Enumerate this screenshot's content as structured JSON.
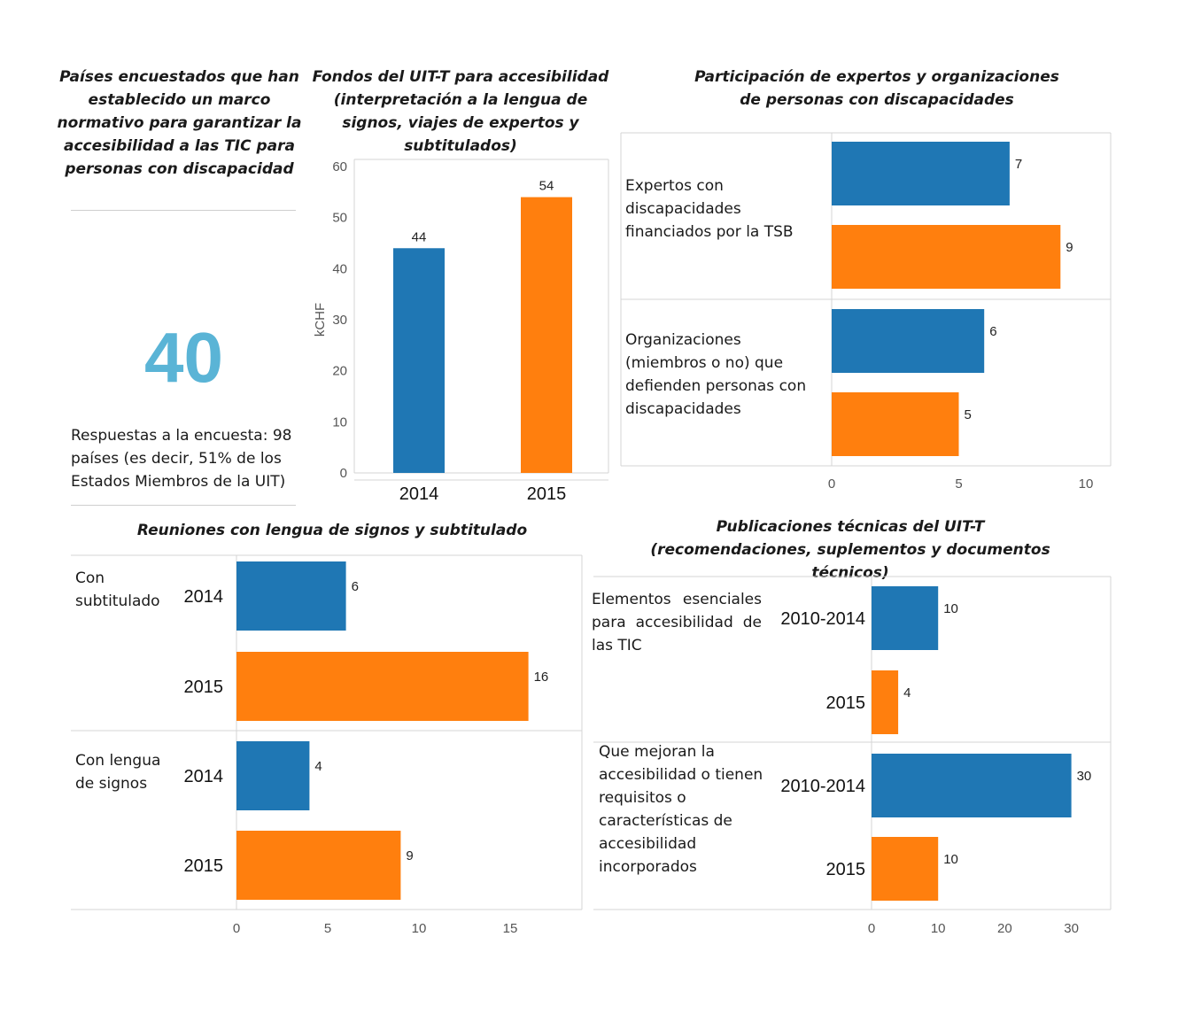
{
  "colors": {
    "blue": "#1f77b4",
    "orange": "#ff7f0e",
    "big_number": "#5ab4d6"
  },
  "panel_kpi": {
    "title": "Países encuestados que han establecido un marco normativo para garantizar la accesibilidad a las TIC para personas con discapacidad",
    "value": "40",
    "note": "Respuestas a la encuesta: 98 países (es decir, 51% de los Estados Miembros de la UIT)"
  },
  "chart_data": [
    {
      "id": "funds",
      "type": "bar",
      "title": "Fondos del UIT-T para accesibilidad (interpretación a la lengua de signos, viajes de expertos y subtitulados)",
      "categories": [
        "2014",
        "2015"
      ],
      "values": [
        44,
        54
      ],
      "ylabel": "kCHF",
      "ylim": [
        0,
        60
      ],
      "yticks": [
        "0",
        "10",
        "20",
        "30",
        "40",
        "50",
        "60"
      ]
    },
    {
      "id": "experts",
      "type": "bar",
      "orientation": "horizontal",
      "title": "Participación de expertos y organizaciones de personas con discapacidades",
      "groups": [
        {
          "label": "Expertos con discapacidades financiados por la TSB",
          "values": [
            7,
            9
          ]
        },
        {
          "label": "Organizaciones (miembros o no) que defienden personas con discapacidades",
          "values": [
            6,
            5
          ]
        }
      ],
      "xlim": [
        0,
        10.5
      ],
      "xticks": [
        "0",
        "5",
        "10"
      ]
    },
    {
      "id": "meetings",
      "type": "bar",
      "orientation": "horizontal",
      "title": "Reuniones con lengua de signos y subtitulado",
      "groups": [
        {
          "label": "Con subtitulado",
          "categories": [
            "2014",
            "2015"
          ],
          "values": [
            6,
            16
          ]
        },
        {
          "label": "Con lengua de signos",
          "categories": [
            "2014",
            "2015"
          ],
          "values": [
            4,
            9
          ]
        }
      ],
      "xlim": [
        0,
        18
      ],
      "xticks": [
        "0",
        "5",
        "10",
        "15"
      ]
    },
    {
      "id": "publications",
      "type": "bar",
      "orientation": "horizontal",
      "title": "Publicaciones técnicas del UIT-T (recomendaciones, suplementos y documentos técnicos)",
      "groups": [
        {
          "label": "Elementos esenciales para accesibilidad de las TIC",
          "categories": [
            "2010-2014",
            "2015"
          ],
          "values": [
            10,
            4
          ]
        },
        {
          "label": "Que mejoran la accesibilidad o tienen requisitos o características de accesibilidad incorporados",
          "categories": [
            "2010-2014",
            "2015"
          ],
          "values": [
            30,
            10
          ]
        }
      ],
      "xlim": [
        0,
        36
      ],
      "xticks": [
        "0",
        "10",
        "20",
        "30"
      ]
    }
  ]
}
